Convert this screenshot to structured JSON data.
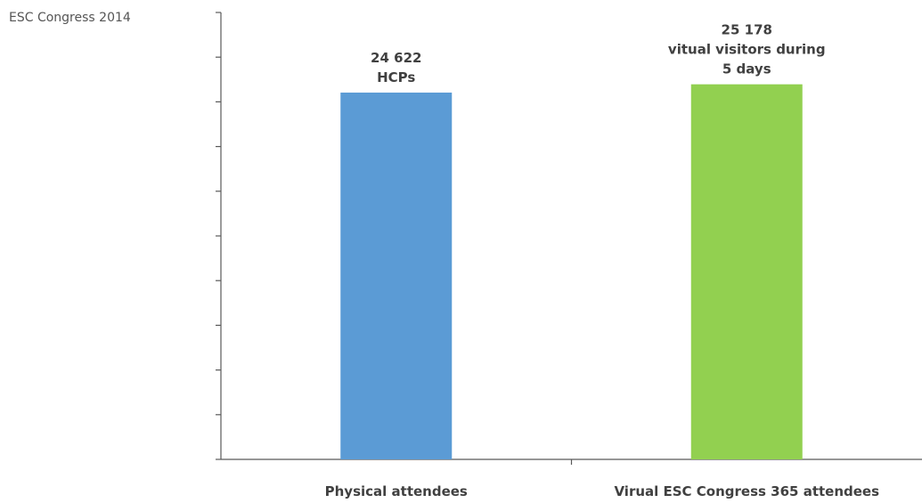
{
  "chart_data": {
    "type": "bar",
    "title": "ESC Congress 2014",
    "categories": [
      "Physical attendees",
      "Virual ESC Congress 365 attendees"
    ],
    "values": [
      24622,
      25178
    ],
    "bar_colors": [
      "#5b9bd5",
      "#92d050"
    ],
    "data_labels": [
      [
        "24 622",
        "HCPs"
      ],
      [
        "25 178",
        "vitual visitors during",
        "5 days"
      ]
    ],
    "ylim": [
      0,
      30000
    ],
    "y_tick_count": 10,
    "grid": false,
    "legend": "none"
  }
}
